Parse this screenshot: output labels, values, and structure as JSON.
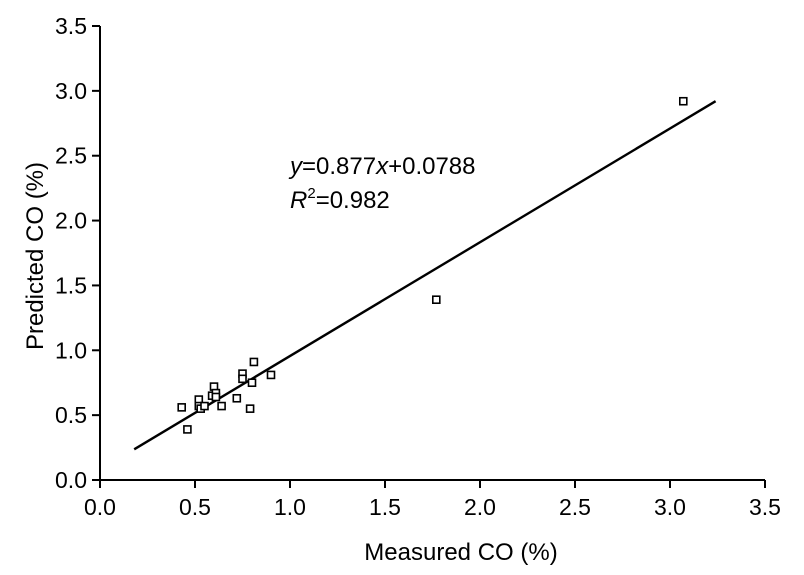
{
  "chart_data": {
    "type": "scatter",
    "xlabel": "Measured CO (%)",
    "ylabel": "Predicted CO (%)",
    "xlim": [
      0,
      3.5
    ],
    "ylim": [
      0,
      3.5
    ],
    "xticks": [
      "0.0",
      "0.5",
      "1.0",
      "1.5",
      "2.0",
      "2.5",
      "3.0",
      "3.5"
    ],
    "yticks": [
      "0.0",
      "0.5",
      "1.0",
      "1.5",
      "2.0",
      "2.5",
      "3.0",
      "3.5"
    ],
    "series": [
      {
        "name": "samples",
        "marker": "hollow-square",
        "points": [
          {
            "x": 0.43,
            "y": 0.56
          },
          {
            "x": 0.46,
            "y": 0.39
          },
          {
            "x": 0.52,
            "y": 0.62
          },
          {
            "x": 0.52,
            "y": 0.57
          },
          {
            "x": 0.53,
            "y": 0.55
          },
          {
            "x": 0.55,
            "y": 0.57
          },
          {
            "x": 0.59,
            "y": 0.65
          },
          {
            "x": 0.6,
            "y": 0.72
          },
          {
            "x": 0.61,
            "y": 0.67
          },
          {
            "x": 0.61,
            "y": 0.64
          },
          {
            "x": 0.64,
            "y": 0.57
          },
          {
            "x": 0.72,
            "y": 0.63
          },
          {
            "x": 0.75,
            "y": 0.82
          },
          {
            "x": 0.75,
            "y": 0.78
          },
          {
            "x": 0.79,
            "y": 0.55
          },
          {
            "x": 0.8,
            "y": 0.75
          },
          {
            "x": 0.81,
            "y": 0.91
          },
          {
            "x": 0.9,
            "y": 0.81
          },
          {
            "x": 1.77,
            "y": 1.39
          },
          {
            "x": 3.07,
            "y": 2.92
          }
        ]
      }
    ],
    "fit_line": {
      "slope": 0.877,
      "intercept": 0.0788,
      "x_start": 0.18,
      "x_end": 3.24
    },
    "annotation": {
      "eq_y": "y",
      "eq_mid": "=0.877",
      "eq_x": "x",
      "eq_tail": "+0.0788",
      "r_letter": "R",
      "r_sup": "2",
      "r_value": "=0.982"
    },
    "grid": false,
    "legend": "none"
  }
}
